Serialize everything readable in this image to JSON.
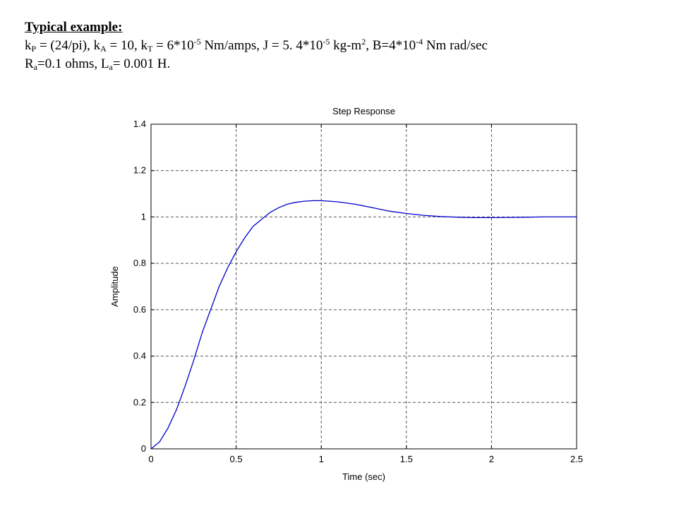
{
  "document": {
    "heading": "Typical example:",
    "line1": {
      "kp_sym": "k",
      "kp_sub": "P",
      "kp_val": " = (24/pi),  ",
      "ka_sym": "k",
      "ka_sub": "A",
      "ka_val": " = 10,  ",
      "kt_sym": "k",
      "kt_sub": "T",
      "kt_val": " = 6*10",
      "kt_exp": "-5",
      "kt_unit": " Nm/amps, J = 5. 4*10",
      "j_exp": "-5",
      "j_unit": " kg-m",
      "j_unit_exp": "2",
      "b_val": ",  B=4*10",
      "b_exp": "-4",
      "b_unit": " Nm rad/sec"
    },
    "line2": {
      "ra_sym": "R",
      "ra_sub": "a",
      "ra_val": "=0.1 ohms, L",
      "la_sub": "a",
      "la_val": "= 0.001 H."
    }
  },
  "chart_data": {
    "type": "line",
    "title": "Step Response",
    "xlabel": "Time (sec)",
    "ylabel": "Amplitude",
    "xlim": [
      0,
      2.5
    ],
    "ylim": [
      0,
      1.4
    ],
    "xticks": [
      0,
      0.5,
      1,
      1.5,
      2,
      2.5
    ],
    "xtick_labels": [
      "0",
      "0.5",
      "1",
      "1.5",
      "2",
      "2.5"
    ],
    "yticks": [
      0,
      0.2,
      0.4,
      0.6,
      0.8,
      1,
      1.2,
      1.4
    ],
    "ytick_labels": [
      "0",
      "0.2",
      "0.4",
      "0.6",
      "0.8",
      "1",
      "1.2",
      "1.4"
    ],
    "grid": true,
    "line_color": "#0000cc",
    "grid_color": "#555555",
    "series": [
      {
        "x": [
          0,
          0.05,
          0.1,
          0.15,
          0.2,
          0.25,
          0.3,
          0.35,
          0.4,
          0.45,
          0.5,
          0.55,
          0.6,
          0.65,
          0.7,
          0.75,
          0.8,
          0.85,
          0.9,
          0.95,
          1.0,
          1.05,
          1.1,
          1.2,
          1.3,
          1.4,
          1.5,
          1.6,
          1.7,
          1.8,
          1.9,
          2.0,
          2.1,
          2.2,
          2.3,
          2.4,
          2.5
        ],
        "y": [
          0,
          0.03,
          0.09,
          0.17,
          0.27,
          0.38,
          0.5,
          0.6,
          0.7,
          0.78,
          0.85,
          0.91,
          0.96,
          0.99,
          1.02,
          1.04,
          1.055,
          1.063,
          1.068,
          1.07,
          1.07,
          1.068,
          1.065,
          1.055,
          1.04,
          1.025,
          1.015,
          1.007,
          1.002,
          0.999,
          0.997,
          0.997,
          0.998,
          0.999,
          1.0,
          1.0,
          1.0
        ]
      }
    ]
  }
}
